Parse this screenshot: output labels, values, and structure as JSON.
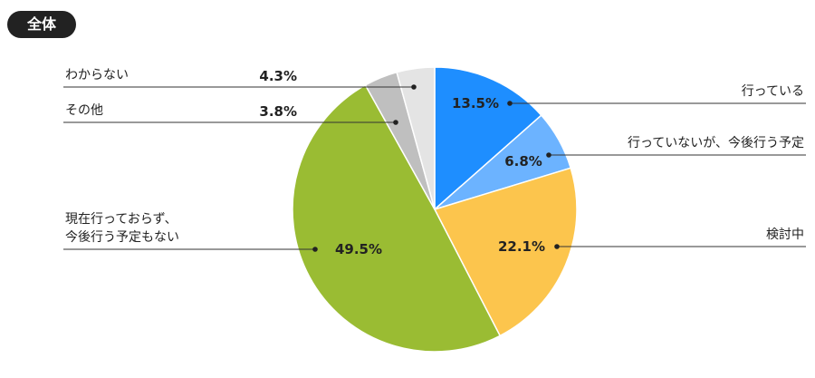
{
  "chart_data": {
    "type": "pie",
    "title": "全体",
    "categories": [
      "行っている",
      "行っていないが、今後行う予定",
      "検討中",
      "現在行っておらず、\n今後行う予定もない",
      "その他",
      "わからない"
    ],
    "values": [
      13.5,
      6.8,
      22.1,
      49.5,
      3.8,
      4.3
    ],
    "value_labels": [
      "13.5%",
      "6.8%",
      "22.1%",
      "49.5%",
      "3.8%",
      "4.3%"
    ],
    "colors": [
      "#1e8eff",
      "#6cb3ff",
      "#fcc54d",
      "#9abc33",
      "#bfbfbf",
      "#e4e4e4"
    ]
  }
}
